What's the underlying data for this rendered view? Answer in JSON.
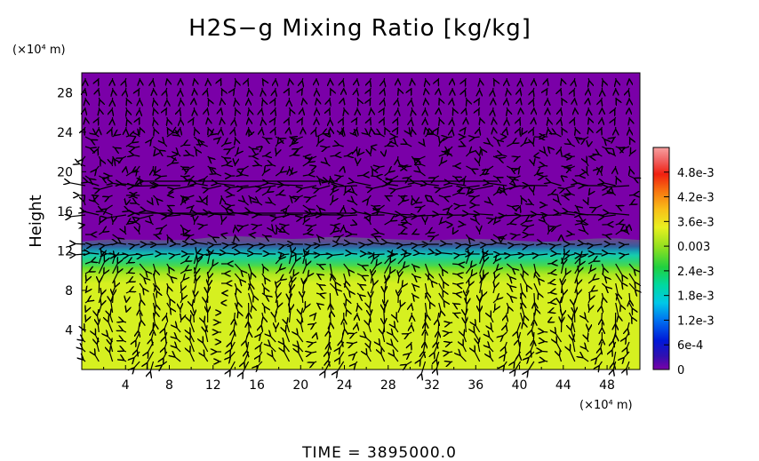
{
  "chart_data": {
    "type": "heatmap",
    "title": "H2S−g Mixing Ratio [kg/kg]",
    "ylabel": "Height",
    "x_unit": "(×10⁴ m)",
    "y_unit": "(×10⁴ m)",
    "x_ticks": [
      "4",
      "8",
      "12",
      "16",
      "20",
      "24",
      "28",
      "32",
      "36",
      "40",
      "44",
      "48"
    ],
    "y_ticks": [
      "4",
      "8",
      "12",
      "16",
      "20",
      "24",
      "28"
    ],
    "xlim": [
      0,
      51
    ],
    "ylim": [
      0,
      30
    ],
    "colorbar": {
      "ticks": [
        "0",
        "6e-4",
        "1.2e-3",
        "1.8e-3",
        "2.4e-3",
        "0.003",
        "3.6e-3",
        "4.2e-3",
        "4.8e-3"
      ],
      "range": [
        0,
        0.0054
      ]
    },
    "field": {
      "lower_layer_value": 0.0037,
      "upper_layer_value": 0,
      "interface_height": 12.5,
      "transition_thickness": 2
    },
    "colors": {
      "upper": "#7a00a8",
      "lower": "#d6f020",
      "transition": [
        "#0040d0",
        "#00c0e0",
        "#20d070",
        "#80e020"
      ]
    },
    "vectors": "velocity field arrows"
  },
  "footer": {
    "time_label": "TIME  =  3895000.0"
  }
}
